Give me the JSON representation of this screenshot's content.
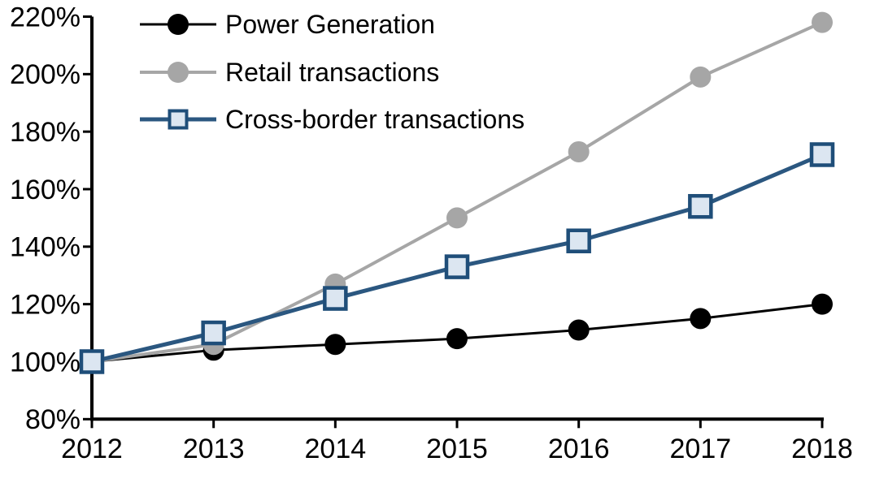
{
  "chart_data": {
    "type": "line",
    "title": "",
    "background": "#ffffff",
    "axis_color": "#000000",
    "text_color": "#000000",
    "grid": false,
    "legend_position": "top-left",
    "x_axis": {
      "tick_labels": [
        "2012",
        "2013",
        "2014",
        "2015",
        "2016",
        "2017",
        "2018"
      ]
    },
    "y_axis": {
      "min": 80,
      "max": 220,
      "ticks": [
        80,
        100,
        120,
        140,
        160,
        180,
        200,
        220
      ],
      "suffix": "%"
    },
    "series": [
      {
        "name": "Power Generation",
        "color": "#000000",
        "line_width": 3,
        "marker": "circle",
        "marker_fill": "#000000",
        "values": [
          100,
          104,
          106,
          108,
          111,
          115,
          120
        ]
      },
      {
        "name": "Retail transactions",
        "color": "#a6a6a6",
        "line_width": 4,
        "marker": "circle",
        "marker_fill": "#a6a6a6",
        "values": [
          100,
          106,
          127,
          150,
          173,
          199,
          218
        ]
      },
      {
        "name": "Cross-border transactions",
        "color": "#2b5780",
        "line_width": 5,
        "marker": "square",
        "marker_fill": "#dce6f1",
        "marker_border": "#1f4e79",
        "values": [
          100,
          110,
          122,
          133,
          142,
          154,
          172
        ]
      }
    ]
  }
}
